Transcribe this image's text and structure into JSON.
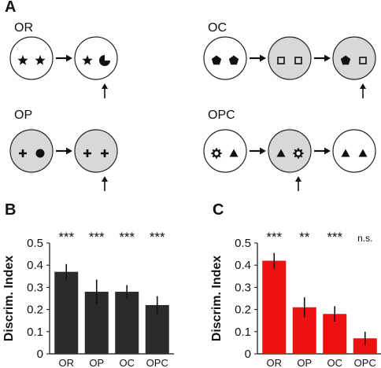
{
  "panels": {
    "A": "A",
    "B": "B",
    "C": "C"
  },
  "conditions": [
    {
      "label": "OR",
      "frames": [
        [
          "star",
          "star"
        ],
        [
          "star",
          "pacman"
        ]
      ],
      "fills": [
        "white",
        "white"
      ]
    },
    {
      "label": "OC",
      "frames": [
        [
          "pentagon",
          "pentagon"
        ],
        [
          "square",
          "square"
        ],
        [
          "pentagon",
          "square"
        ]
      ],
      "fills": [
        "white",
        "gray",
        "gray"
      ]
    },
    {
      "label": "OP",
      "frames": [
        [
          "plus",
          "circle"
        ],
        [
          "plus",
          "plus"
        ]
      ],
      "fills": [
        "gray",
        "gray"
      ]
    },
    {
      "label": "OPC",
      "frames": [
        [
          "sun",
          "triangle"
        ],
        [
          "triangle",
          "sun"
        ],
        [
          "triangle",
          "triangle"
        ]
      ],
      "fills": [
        "white",
        "gray",
        "white"
      ]
    }
  ],
  "colors": {
    "gray_fill": "#d8d8d8",
    "bar_dark": "#2b2b2b",
    "bar_red": "#ee1111"
  },
  "chart_data": [
    {
      "type": "bar",
      "panel": "B",
      "categories": [
        "OR",
        "OP",
        "OC",
        "OPC"
      ],
      "values": [
        0.37,
        0.28,
        0.28,
        0.22
      ],
      "errors": [
        0.035,
        0.055,
        0.03,
        0.04
      ],
      "significance": [
        "***",
        "***",
        "***",
        "***"
      ],
      "ylabel": "Discrim. Index",
      "ylim": [
        0,
        0.5
      ],
      "yticks": [
        "0",
        "0.1",
        "0.2",
        "0.3",
        "0.4",
        "0.5"
      ],
      "color": "#2b2b2b"
    },
    {
      "type": "bar",
      "panel": "C",
      "categories": [
        "OR",
        "OP",
        "OC",
        "OPC"
      ],
      "values": [
        0.42,
        0.21,
        0.18,
        0.07
      ],
      "errors": [
        0.035,
        0.045,
        0.035,
        0.03
      ],
      "significance": [
        "***",
        "**",
        "***",
        "n.s."
      ],
      "ylabel": "Discrim. Index",
      "ylim": [
        0,
        0.5
      ],
      "yticks": [
        "0",
        "0.1",
        "0.2",
        "0.3",
        "0.4",
        "0.5"
      ],
      "color": "#ee1111"
    }
  ]
}
